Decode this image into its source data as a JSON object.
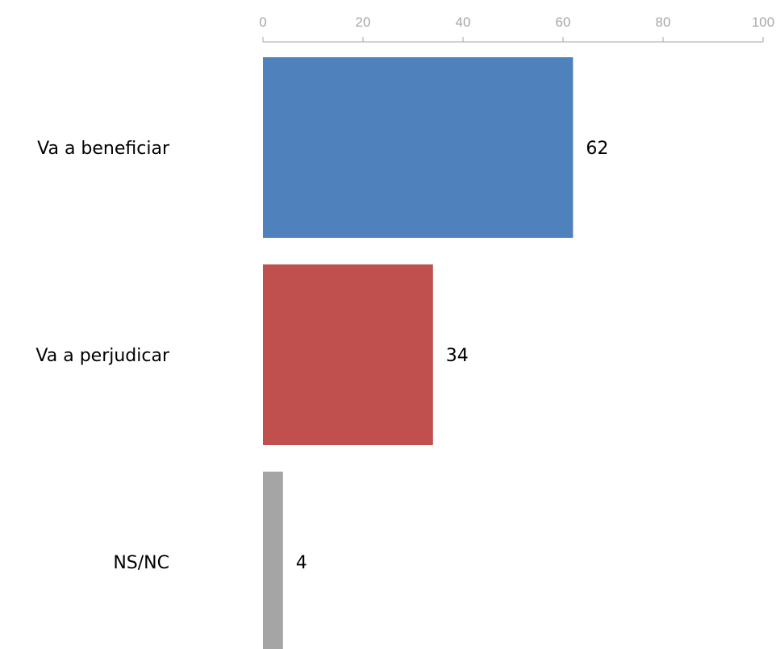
{
  "chart_data": {
    "type": "bar",
    "orientation": "horizontal",
    "title": "",
    "xlabel": "",
    "ylabel": "",
    "xlim": [
      0,
      100
    ],
    "ticks": [
      "0",
      "20",
      "40",
      "60",
      "80",
      "100"
    ],
    "tick_values": [
      0,
      20,
      40,
      60,
      80,
      100
    ],
    "axis_position": "top",
    "grid": false,
    "legend": "none",
    "categories": [
      "Va a beneficiar",
      "Va a perjudicar",
      "NS/NC"
    ],
    "values": [
      62,
      34,
      4
    ],
    "data_labels": [
      "62",
      "34",
      "4"
    ],
    "colors": [
      "#4f81bd",
      "#c0504d",
      "#a5a5a5"
    ],
    "axis_color": "#a6a6a6"
  }
}
